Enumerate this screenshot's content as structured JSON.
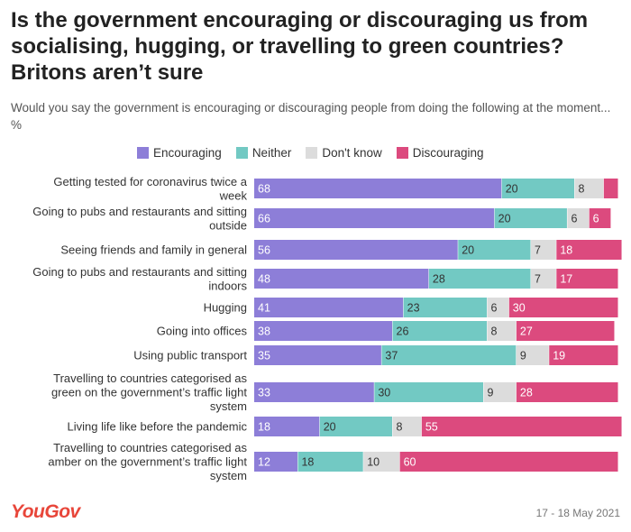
{
  "header": {
    "title": "Is the government encouraging or discouraging us from socialising, hugging, or travelling to green countries? Britons aren’t sure",
    "subtitle": "Would you say the government is encouraging or discouraging people from doing the following at the moment... %"
  },
  "footer": {
    "logo": "YouGov",
    "date": "17 - 18 May 2021"
  },
  "chart_data": {
    "type": "bar",
    "orientation": "horizontal",
    "stacked": true,
    "legend_position": "top",
    "grid": false,
    "categories": [
      [
        "Getting tested for coronavirus twice a",
        "week"
      ],
      [
        "Going to pubs and restaurants and sitting",
        "outside"
      ],
      [
        "Seeing friends and family in general"
      ],
      [
        "Going to pubs and restaurants and sitting",
        "indoors"
      ],
      [
        "Hugging"
      ],
      [
        "Going into offices"
      ],
      [
        "Using public transport"
      ],
      [
        "Travelling to countries categorised as",
        "green on the government’s traffic light",
        "system"
      ],
      [
        "Living life like before the pandemic"
      ],
      [
        "Travelling to countries categorised as",
        "amber on the government’s traffic light",
        "system"
      ]
    ],
    "series": [
      {
        "name": "Encouraging",
        "color": "#8d7ed8",
        "values": [
          68,
          66,
          56,
          48,
          41,
          38,
          35,
          33,
          18,
          12
        ]
      },
      {
        "name": "Neither",
        "color": "#72c9c3",
        "values": [
          20,
          20,
          20,
          28,
          23,
          26,
          37,
          30,
          20,
          18
        ]
      },
      {
        "name": "Don't know",
        "color": "#dcdcdc",
        "values": [
          8,
          6,
          7,
          7,
          6,
          8,
          9,
          9,
          8,
          10
        ]
      },
      {
        "name": "Discouraging",
        "color": "#dc4a7e",
        "values": [
          4,
          6,
          18,
          17,
          30,
          27,
          19,
          28,
          55,
          60
        ]
      }
    ],
    "value_labels": [
      [
        "68",
        "20",
        "8",
        ""
      ],
      [
        "66",
        "20",
        "6",
        "6"
      ],
      [
        "56",
        "20",
        "7",
        "18"
      ],
      [
        "48",
        "28",
        "7",
        "17"
      ],
      [
        "41",
        "23",
        "6",
        "30"
      ],
      [
        "38",
        "26",
        "8",
        "27"
      ],
      [
        "35",
        "37",
        "9",
        "19"
      ],
      [
        "33",
        "30",
        "9",
        "28"
      ],
      [
        "18",
        "20",
        "8",
        "55"
      ],
      [
        "12",
        "18",
        "10",
        "60"
      ]
    ],
    "xlim": [
      0,
      100
    ]
  }
}
